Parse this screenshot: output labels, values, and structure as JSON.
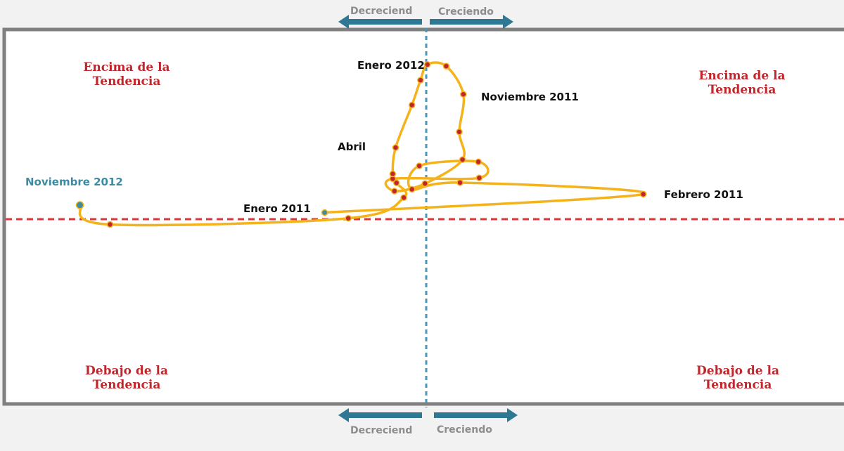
{
  "colors": {
    "frame": "#7f7f7f",
    "trend_line": "#d9353a",
    "growth_line": "#4a96b4",
    "path": "#f5b31b",
    "point": "#c0272d",
    "endpoint": "#3b8ba3",
    "arrow": "#2f7894",
    "quadrant_text": "#c0272d",
    "direction_text": "#8c8c8c"
  },
  "top_direction": {
    "left": "Decreciend",
    "right": "Creciendo"
  },
  "bottom_direction": {
    "left": "Decreciend",
    "right": "Creciendo"
  },
  "quadrants": {
    "top_left": [
      "Encima de la",
      "Tendencia"
    ],
    "top_right": [
      "Encima de la",
      "Tendencia"
    ],
    "bottom_left": [
      "Debajo de la",
      "Tendencia"
    ],
    "bottom_right": [
      "Debajo de la",
      "Tendencia"
    ]
  },
  "chart_data": {
    "type": "scatter",
    "title": "",
    "xlabel": "",
    "ylabel": "",
    "xlim": [
      -100,
      100
    ],
    "ylim": [
      -100,
      100
    ],
    "x_center_line": 0,
    "y_center_line": 0,
    "connected": true,
    "grid": false,
    "axis_ticks": false,
    "series": [
      {
        "points": [
          {
            "x": -24.9,
            "y": 3.6,
            "label": "Enero 2011"
          },
          {
            "x": 53.2,
            "y": 13.7,
            "label": "Febrero 2011"
          },
          {
            "x": 8.3,
            "y": 20.0
          },
          {
            "x": -3.5,
            "y": 16.4
          },
          {
            "x": -1.7,
            "y": 29.2
          },
          {
            "x": 12.8,
            "y": 31.4
          },
          {
            "x": 13.0,
            "y": 22.6
          },
          {
            "x": -8.2,
            "y": 22.1
          },
          {
            "x": -7.8,
            "y": 15.4
          },
          {
            "x": -0.3,
            "y": 19.5
          },
          {
            "x": 8.9,
            "y": 32.6
          },
          {
            "x": 8.1,
            "y": 47.8
          },
          {
            "x": 9.1,
            "y": 68.4,
            "label": "Noviembre 2011"
          },
          {
            "x": 4.9,
            "y": 83.8
          },
          {
            "x": 0.3,
            "y": 84.7,
            "label": "Enero 2012"
          },
          {
            "x": -1.4,
            "y": 76.1
          },
          {
            "x": -3.5,
            "y": 62.5
          },
          {
            "x": -7.5,
            "y": 39.2,
            "label": "Abril"
          },
          {
            "x": -8.2,
            "y": 24.8
          },
          {
            "x": -7.3,
            "y": 19.9
          },
          {
            "x": -5.5,
            "y": 11.8
          },
          {
            "x": -19.1,
            "y": 0.5
          },
          {
            "x": -77.5,
            "y": -2.9
          },
          {
            "x": -84.9,
            "y": 7.7,
            "label": "Noviembre 2012"
          }
        ]
      }
    ]
  }
}
